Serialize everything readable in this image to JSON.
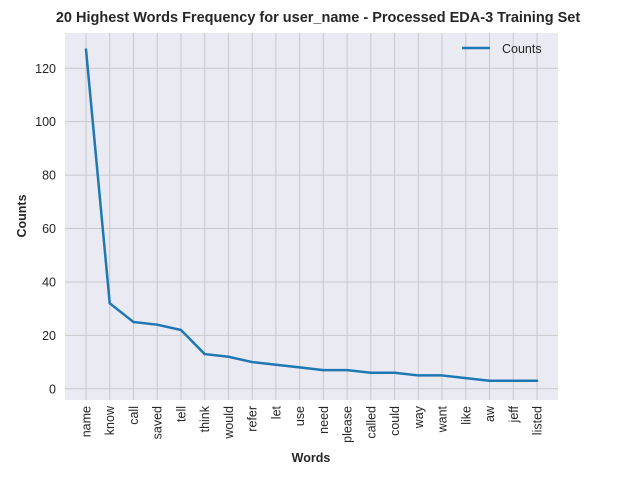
{
  "chart_data": {
    "type": "line",
    "title": "20 Highest Words Frequency for user_name - Processed EDA-3 Training Set",
    "xlabel": "Words",
    "ylabel": "Counts",
    "categories": [
      "name",
      "know",
      "call",
      "saved",
      "tell",
      "think",
      "would",
      "refer",
      "let",
      "use",
      "need",
      "please",
      "called",
      "could",
      "way",
      "want",
      "like",
      "aw",
      "jeff",
      "listed"
    ],
    "series": [
      {
        "name": "Counts",
        "values": [
          127,
          32,
          25,
          24,
          22,
          13,
          12,
          10,
          9,
          8,
          7,
          7,
          6,
          6,
          5,
          5,
          4,
          3,
          3,
          3
        ]
      }
    ],
    "y_ticks": [
      0,
      20,
      40,
      60,
      80,
      100,
      120
    ],
    "ylim": [
      -4.2,
      133.2
    ],
    "grid": true,
    "legend_position": "top-right",
    "colors": {
      "plot_background": "#eaeaf2",
      "grid": "#c8c8cc",
      "line": "#1f77b4",
      "text": "#262626"
    }
  }
}
